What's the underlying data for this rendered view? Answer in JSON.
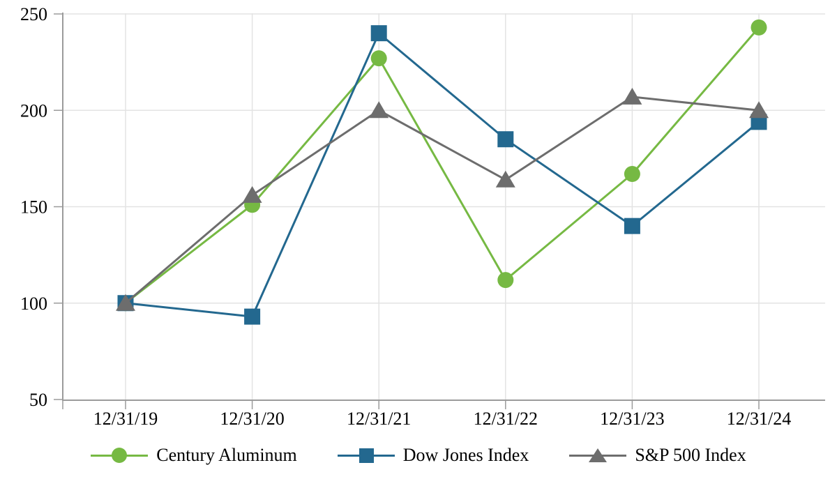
{
  "chart_data": {
    "type": "line",
    "title": "",
    "xlabel": "",
    "ylabel": "",
    "categories": [
      "12/31/19",
      "12/31/20",
      "12/31/21",
      "12/31/22",
      "12/31/23",
      "12/31/24"
    ],
    "series": [
      {
        "name": "Century Aluminum",
        "marker": "circle",
        "color": "#76B943",
        "values": [
          100,
          151,
          227,
          112,
          167,
          243
        ]
      },
      {
        "name": "Dow Jones Index",
        "marker": "square",
        "color": "#23688F",
        "values": [
          100,
          93,
          240,
          185,
          140,
          194
        ]
      },
      {
        "name": "S&P 500 Index",
        "marker": "triangle",
        "color": "#6D6D6D",
        "values": [
          100,
          156,
          200,
          164,
          207,
          200
        ]
      }
    ],
    "ylim": [
      50,
      250
    ],
    "yticks": [
      50,
      100,
      150,
      200,
      250
    ],
    "grid": true,
    "legend_position": "bottom"
  },
  "style": {
    "axis_color": "#9B9B9B",
    "grid_color": "#E3E3E3",
    "text_color": "#000000",
    "background": "#FFFFFF"
  }
}
